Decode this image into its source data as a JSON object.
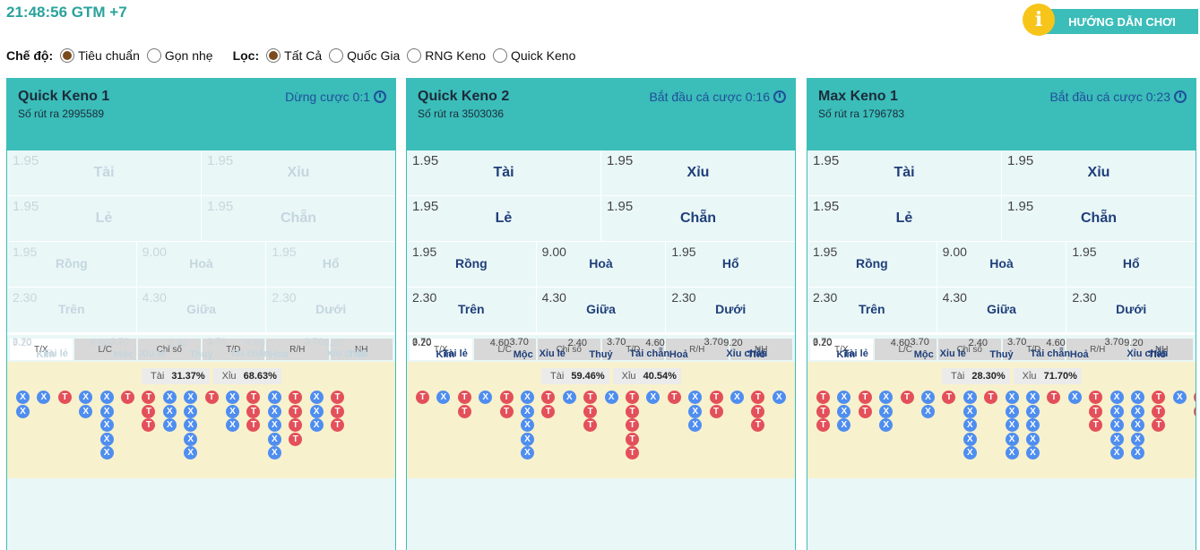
{
  "header": {
    "clock": "21:48:56 GTM +7",
    "guide_label": "HƯỚNG DẪN CHƠI",
    "guide_icon": "info-icon"
  },
  "filters": {
    "mode_label": "Chế độ:",
    "mode_options": [
      {
        "label": "Tiêu chuẩn",
        "selected": true
      },
      {
        "label": "Gọn nhẹ",
        "selected": false
      }
    ],
    "filter_label": "Lọc:",
    "filter_options": [
      {
        "label": "Tất Cả",
        "selected": true
      },
      {
        "label": "Quốc Gia",
        "selected": false
      },
      {
        "label": "RNG Keno",
        "selected": false
      },
      {
        "label": "Quick Keno",
        "selected": false
      }
    ]
  },
  "colors": {
    "accent": "#3bbdb9",
    "tai": "#e3505a",
    "xiu": "#4f8ef0",
    "road_bg": "#f8f1cd"
  },
  "panels": [
    {
      "name": "Quick Keno 1",
      "draw": "Số rút ra 2995589",
      "status": "Dừng cược 0:1",
      "disabled": true,
      "odds": {
        "r1": [
          {
            "odd": "1.95",
            "name": "Tài"
          },
          {
            "odd": "1.95",
            "name": "Xỉu"
          }
        ],
        "r2": [
          {
            "odd": "1.95",
            "name": "Lẻ"
          },
          {
            "odd": "1.95",
            "name": "Chẵn"
          }
        ],
        "r3": [
          {
            "odd": "1.95",
            "name": "Rồng"
          },
          {
            "odd": "9.00",
            "name": "Hoà"
          },
          {
            "odd": "1.95",
            "name": "Hổ"
          }
        ],
        "r4": [
          {
            "odd": "2.30",
            "name": "Trên"
          },
          {
            "odd": "4.30",
            "name": "Giữa"
          },
          {
            "odd": "2.30",
            "name": "Dưới"
          }
        ],
        "r5": [
          {
            "odd": "3.70",
            "name": "Tài lẻ"
          },
          {
            "odd": "3.70",
            "name": "Xỉu lẻ"
          },
          {
            "odd": "3.70",
            "name": "Tài chẵn"
          },
          {
            "odd": "3.70",
            "name": "Xỉu chẵn"
          }
        ],
        "r6": [
          {
            "odd": "9.20",
            "name": "Kim"
          },
          {
            "odd": "4.60",
            "name": "Mộc"
          },
          {
            "odd": "2.40",
            "name": "Thuỷ"
          },
          {
            "odd": "4.60",
            "name": "Hoả"
          },
          {
            "odd": "9.20",
            "name": "Thổ"
          }
        ]
      },
      "tabs": [
        "T/X",
        "L/C",
        "Chỉ số",
        "T/D",
        "R/H",
        "NH"
      ],
      "active_tab": 0,
      "tai_label": "Tài",
      "tai_pct": "31.37%",
      "xiu_label": "Xỉu",
      "xiu_pct": "68.63%",
      "road": [
        [
          "X",
          "X"
        ],
        [
          "X"
        ],
        [
          "T"
        ],
        [
          "X",
          "X"
        ],
        [
          "X",
          "X",
          "X",
          "X",
          "X"
        ],
        [
          "T"
        ],
        [
          "T",
          "T",
          "T"
        ],
        [
          "X",
          "X",
          "X"
        ],
        [
          "X",
          "X",
          "X",
          "X",
          "X"
        ],
        [
          "T"
        ],
        [
          "X",
          "X",
          "X"
        ],
        [
          "T",
          "T",
          "T"
        ],
        [
          "X",
          "X",
          "X",
          "X",
          "X"
        ],
        [
          "T",
          "T",
          "T",
          "T"
        ],
        [
          "X",
          "X",
          "X"
        ],
        [
          "T",
          "T",
          "T"
        ]
      ]
    },
    {
      "name": "Quick Keno 2",
      "draw": "Số rút ra 3503036",
      "status": "Bắt đầu cá cược 0:16",
      "disabled": false,
      "odds": {
        "r1": [
          {
            "odd": "1.95",
            "name": "Tài"
          },
          {
            "odd": "1.95",
            "name": "Xỉu"
          }
        ],
        "r2": [
          {
            "odd": "1.95",
            "name": "Lẻ"
          },
          {
            "odd": "1.95",
            "name": "Chẵn"
          }
        ],
        "r3": [
          {
            "odd": "1.95",
            "name": "Rồng"
          },
          {
            "odd": "9.00",
            "name": "Hoà"
          },
          {
            "odd": "1.95",
            "name": "Hổ"
          }
        ],
        "r4": [
          {
            "odd": "2.30",
            "name": "Trên"
          },
          {
            "odd": "4.30",
            "name": "Giữa"
          },
          {
            "odd": "2.30",
            "name": "Dưới"
          }
        ],
        "r5": [
          {
            "odd": "3.70",
            "name": "Tài lẻ"
          },
          {
            "odd": "3.70",
            "name": "Xỉu lẻ"
          },
          {
            "odd": "3.70",
            "name": "Tài chẵn"
          },
          {
            "odd": "3.70",
            "name": "Xỉu chẵn"
          }
        ],
        "r6": [
          {
            "odd": "9.20",
            "name": "Kim"
          },
          {
            "odd": "4.60",
            "name": "Mộc"
          },
          {
            "odd": "2.40",
            "name": "Thuỷ"
          },
          {
            "odd": "4.60",
            "name": "Hoả"
          },
          {
            "odd": "9.20",
            "name": "Thổ"
          }
        ]
      },
      "tabs": [
        "T/X",
        "L/C",
        "Chỉ số",
        "T/D",
        "R/H",
        "NH"
      ],
      "active_tab": 0,
      "tai_label": "Tài",
      "tai_pct": "59.46%",
      "xiu_label": "Xỉu",
      "xiu_pct": "40.54%",
      "road": [
        [
          "T"
        ],
        [
          "X"
        ],
        [
          "T",
          "T"
        ],
        [
          "X"
        ],
        [
          "T",
          "T"
        ],
        [
          "X",
          "X",
          "X",
          "X",
          "X"
        ],
        [
          "T",
          "T"
        ],
        [
          "X"
        ],
        [
          "T",
          "T",
          "T"
        ],
        [
          "X"
        ],
        [
          "T",
          "T",
          "T",
          "T",
          "T"
        ],
        [
          "X"
        ],
        [
          "T"
        ],
        [
          "X",
          "X",
          "X"
        ],
        [
          "T",
          "T"
        ],
        [
          "X"
        ],
        [
          "T",
          "T",
          "T"
        ],
        [
          "X"
        ]
      ]
    },
    {
      "name": "Max Keno 1",
      "draw": "Số rút ra 1796783",
      "status": "Bắt đầu cá cược 0:23",
      "disabled": false,
      "odds": {
        "r1": [
          {
            "odd": "1.95",
            "name": "Tài"
          },
          {
            "odd": "1.95",
            "name": "Xỉu"
          }
        ],
        "r2": [
          {
            "odd": "1.95",
            "name": "Lẻ"
          },
          {
            "odd": "1.95",
            "name": "Chẵn"
          }
        ],
        "r3": [
          {
            "odd": "1.95",
            "name": "Rồng"
          },
          {
            "odd": "9.00",
            "name": "Hoà"
          },
          {
            "odd": "1.95",
            "name": "Hổ"
          }
        ],
        "r4": [
          {
            "odd": "2.30",
            "name": "Trên"
          },
          {
            "odd": "4.30",
            "name": "Giữa"
          },
          {
            "odd": "2.30",
            "name": "Dưới"
          }
        ],
        "r5": [
          {
            "odd": "3.70",
            "name": "Tài lẻ"
          },
          {
            "odd": "3.70",
            "name": "Xỉu lẻ"
          },
          {
            "odd": "3.70",
            "name": "Tài chẵn"
          },
          {
            "odd": "3.70",
            "name": "Xỉu chẵn"
          }
        ],
        "r6": [
          {
            "odd": "9.20",
            "name": "Kim"
          },
          {
            "odd": "4.60",
            "name": "Mộc"
          },
          {
            "odd": "2.40",
            "name": "Thuỷ"
          },
          {
            "odd": "4.60",
            "name": "Hoả"
          },
          {
            "odd": "9.20",
            "name": "Thổ"
          }
        ]
      },
      "tabs": [
        "T/X",
        "L/C",
        "Chỉ số",
        "T/D",
        "R/H",
        "NH"
      ],
      "active_tab": 0,
      "tai_label": "Tài",
      "tai_pct": "28.30%",
      "xiu_label": "Xỉu",
      "xiu_pct": "71.70%",
      "road": [
        [
          "T",
          "T",
          "T"
        ],
        [
          "X",
          "X",
          "X"
        ],
        [
          "T",
          "T"
        ],
        [
          "X",
          "X",
          "X"
        ],
        [
          "T"
        ],
        [
          "X",
          "X"
        ],
        [
          "T"
        ],
        [
          "X",
          "X",
          "X",
          "X",
          "X"
        ],
        [
          "T"
        ],
        [
          "X",
          "X",
          "X",
          "X",
          "X"
        ],
        [
          "X",
          "X",
          "X",
          "X",
          "X"
        ],
        [
          "T"
        ],
        [
          "X"
        ],
        [
          "T",
          "T",
          "T"
        ],
        [
          "X",
          "X",
          "X",
          "X",
          "X"
        ],
        [
          "X",
          "X",
          "X",
          "X",
          "X"
        ],
        [
          "T",
          "T",
          "T"
        ],
        [
          "X"
        ],
        [
          "T",
          "T"
        ]
      ]
    }
  ]
}
